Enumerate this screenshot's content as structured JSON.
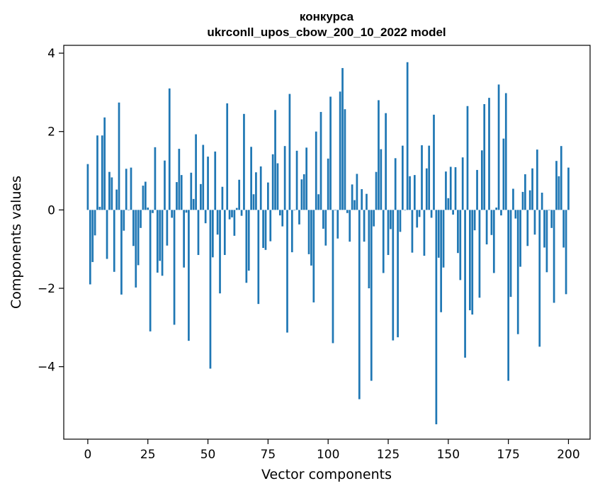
{
  "chart_data": {
    "type": "bar",
    "title_line1": "конкурса",
    "title_line2": "ukrconll_upos_cbow_200_10_2022 model",
    "xlabel": "Vector components",
    "ylabel": "Components values",
    "bar_color": "#1f77b4",
    "xlim": [
      -10,
      209
    ],
    "ylim": [
      -5.85,
      4.2
    ],
    "xticks": [
      0,
      25,
      50,
      75,
      100,
      125,
      150,
      175,
      200
    ],
    "xtick_labels": [
      "0",
      "25",
      "50",
      "75",
      "100",
      "125",
      "150",
      "175",
      "200"
    ],
    "yticks": [
      -4,
      -2,
      0,
      2,
      4
    ],
    "ytick_labels": [
      "−4",
      "−2",
      "0",
      "2",
      "4"
    ],
    "grid": false,
    "values": [
      1.17,
      -1.9,
      -1.33,
      -0.65,
      1.9,
      0.08,
      1.9,
      2.36,
      -1.25,
      0.97,
      0.83,
      -1.58,
      0.52,
      2.74,
      -2.16,
      -0.53,
      1.05,
      0.0,
      1.08,
      -0.92,
      -1.98,
      -1.41,
      -0.46,
      0.62,
      0.72,
      0.06,
      -3.1,
      -0.08,
      1.6,
      -1.6,
      -1.3,
      -1.68,
      1.26,
      -0.91,
      3.1,
      -0.2,
      -2.93,
      0.71,
      1.56,
      0.89,
      -1.47,
      -0.07,
      -3.34,
      0.95,
      0.28,
      1.93,
      -1.15,
      0.66,
      1.66,
      -0.34,
      1.36,
      -4.05,
      -1.21,
      1.49,
      -0.63,
      -2.13,
      0.59,
      -1.15,
      2.72,
      -0.24,
      -0.19,
      -0.66,
      0.05,
      0.77,
      -0.15,
      2.45,
      -1.86,
      -1.55,
      1.61,
      0.4,
      0.96,
      -2.4,
      1.11,
      -0.97,
      -1.02,
      0.7,
      -0.8,
      1.42,
      2.55,
      1.19,
      -0.14,
      -0.42,
      1.63,
      -3.13,
      2.96,
      -1.08,
      0.0,
      1.51,
      -0.37,
      0.78,
      0.91,
      1.59,
      -1.13,
      -1.42,
      -2.36,
      2.0,
      0.4,
      2.5,
      -0.48,
      -0.91,
      1.31,
      2.89,
      -3.4,
      0.0,
      -0.73,
      3.02,
      3.62,
      2.57,
      -0.08,
      -0.81,
      0.65,
      0.25,
      0.92,
      -4.83,
      0.53,
      -0.81,
      0.41,
      -2.0,
      -4.36,
      -0.42,
      0.97,
      2.8,
      1.55,
      -1.61,
      2.47,
      -1.15,
      -0.49,
      -3.33,
      1.32,
      -3.25,
      -0.56,
      1.64,
      0.0,
      3.77,
      0.86,
      -1.09,
      0.89,
      -0.45,
      -0.18,
      1.65,
      -1.17,
      1.06,
      1.64,
      -0.2,
      2.43,
      -5.47,
      -1.22,
      -2.61,
      -1.47,
      0.98,
      0.3,
      1.1,
      -0.12,
      1.09,
      -1.1,
      -1.79,
      1.34,
      -3.77,
      2.65,
      -2.56,
      -2.67,
      -0.52,
      1.02,
      -2.24,
      1.52,
      2.7,
      -0.88,
      2.86,
      -0.64,
      -1.61,
      0.06,
      3.2,
      -0.14,
      1.82,
      2.98,
      -4.36,
      -2.22,
      0.54,
      -0.22,
      -3.17,
      -1.45,
      0.46,
      0.91,
      -0.92,
      0.5,
      1.06,
      -0.63,
      1.54,
      -3.49,
      0.44,
      -0.96,
      -1.59,
      0.0,
      -0.46,
      -2.37,
      1.25,
      0.86,
      1.63,
      -0.96,
      -2.15,
      1.08
    ]
  }
}
